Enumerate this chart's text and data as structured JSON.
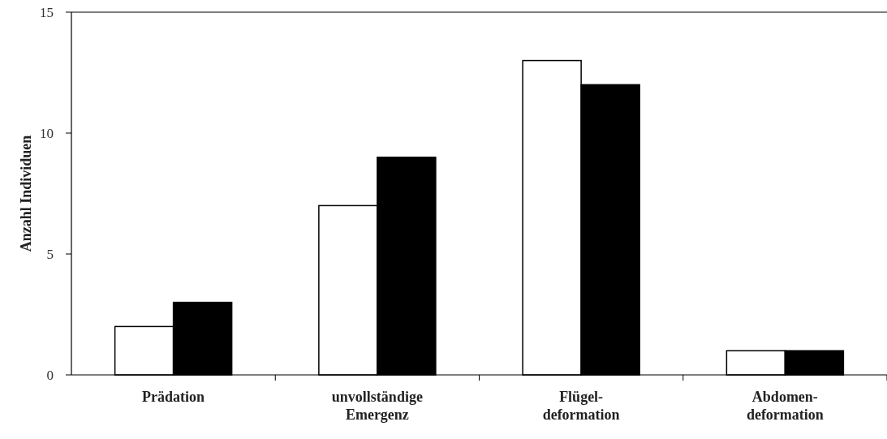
{
  "chart_data": {
    "type": "bar",
    "ylabel": "Anzahl Individuen",
    "categories": [
      "Prädation",
      "unvollständige Emergenz",
      "Flügel-deformation",
      "Abdomen-deformation"
    ],
    "series": [
      {
        "color": "#ffffff",
        "values": [
          2,
          7,
          13,
          1
        ]
      },
      {
        "color": "#000000",
        "values": [
          3,
          9,
          12,
          1
        ]
      }
    ],
    "ylim": [
      0,
      15
    ],
    "yticks": [
      0,
      5,
      10,
      15
    ],
    "grid": false
  }
}
